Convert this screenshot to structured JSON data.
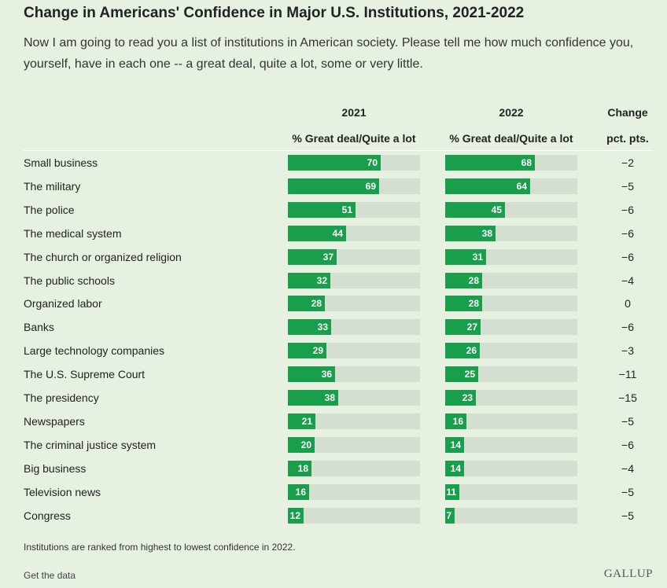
{
  "chart_data": {
    "type": "table",
    "title": "Change in Americans' Confidence in Major U.S. Institutions, 2021-2022",
    "subtitle": "Now I am going to read you a list of institutions in American society. Please tell me how much confidence you, yourself, have in each one -- a great deal, quite a lot, some or very little.",
    "columns": {
      "y2021": "2021",
      "y2022": "2022",
      "change": "Change",
      "measure_2021": "% Great deal/Quite a lot",
      "measure_2022": "% Great deal/Quite a lot",
      "change_unit": "pct. pts."
    },
    "xlim": [
      0,
      100
    ],
    "bar_color": "#199e4c",
    "track_color": "#d4dfd1",
    "rows": [
      {
        "label": "Small business",
        "v2021": 70,
        "v2022": 68,
        "change": "−2"
      },
      {
        "label": "The military",
        "v2021": 69,
        "v2022": 64,
        "change": "−5"
      },
      {
        "label": "The police",
        "v2021": 51,
        "v2022": 45,
        "change": "−6"
      },
      {
        "label": "The medical system",
        "v2021": 44,
        "v2022": 38,
        "change": "−6"
      },
      {
        "label": "The church or organized religion",
        "v2021": 37,
        "v2022": 31,
        "change": "−6"
      },
      {
        "label": "The public schools",
        "v2021": 32,
        "v2022": 28,
        "change": "−4"
      },
      {
        "label": "Organized labor",
        "v2021": 28,
        "v2022": 28,
        "change": "0"
      },
      {
        "label": "Banks",
        "v2021": 33,
        "v2022": 27,
        "change": "−6"
      },
      {
        "label": "Large technology companies",
        "v2021": 29,
        "v2022": 26,
        "change": "−3"
      },
      {
        "label": "The U.S. Supreme Court",
        "v2021": 36,
        "v2022": 25,
        "change": "−11"
      },
      {
        "label": "The presidency",
        "v2021": 38,
        "v2022": 23,
        "change": "−15"
      },
      {
        "label": "Newspapers",
        "v2021": 21,
        "v2022": 16,
        "change": "−5"
      },
      {
        "label": "The criminal justice system",
        "v2021": 20,
        "v2022": 14,
        "change": "−6"
      },
      {
        "label": "Big business",
        "v2021": 18,
        "v2022": 14,
        "change": "−4"
      },
      {
        "label": "Television news",
        "v2021": 16,
        "v2022": 11,
        "change": "−5"
      },
      {
        "label": "Congress",
        "v2021": 12,
        "v2022": 7,
        "change": "−5"
      }
    ],
    "footnote": "Institutions are ranked from highest to lowest confidence in 2022."
  },
  "footer": {
    "get_data": "Get the data",
    "logo": "GALLUP"
  }
}
